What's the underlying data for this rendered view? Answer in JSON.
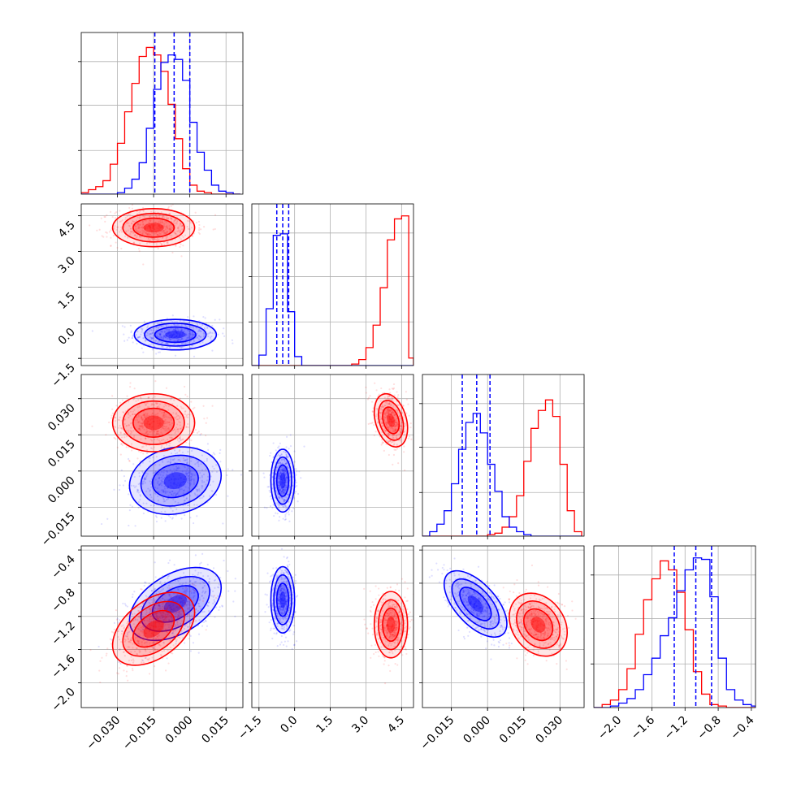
{
  "chart_data": {
    "type": "corner",
    "colors": {
      "red": "#ff0000",
      "blue": "#0000ff",
      "grid": "#b0b0b0"
    },
    "parameters": [
      {
        "range": [
          -0.045,
          0.022
        ],
        "ticks": [
          "−0.030",
          "−0.015",
          "0.000",
          "0.015"
        ],
        "tick_values": [
          -0.03,
          -0.015,
          0.0,
          0.015
        ]
      },
      {
        "range": [
          -1.8,
          5.0
        ],
        "ticks": [
          "−1.5",
          "0.0",
          "1.5",
          "3.0",
          "4.5"
        ],
        "tick_values": [
          -1.5,
          0.0,
          1.5,
          3.0,
          4.5
        ]
      },
      {
        "range": [
          -0.027,
          0.04
        ],
        "ticks": [
          "−0.015",
          "0.000",
          "0.015",
          "0.030"
        ],
        "tick_values": [
          -0.015,
          0.0,
          0.015,
          0.03
        ]
      },
      {
        "range": [
          -2.3,
          -0.35
        ],
        "ticks": [
          "−2.0",
          "−1.6",
          "−1.2",
          "−0.8",
          "−0.4"
        ],
        "tick_values": [
          -2.0,
          -1.6,
          -1.2,
          -0.8,
          -0.4
        ]
      }
    ],
    "marginals": [
      {
        "param": 0,
        "quantiles_blue": [
          -0.0145,
          -0.0065,
          0.0
        ],
        "red": {
          "edges": [
            -0.045,
            -0.042,
            -0.039,
            -0.036,
            -0.033,
            -0.03,
            -0.027,
            -0.024,
            -0.021,
            -0.018,
            -0.015,
            -0.012,
            -0.009,
            -0.006,
            -0.003,
            0.0,
            0.003,
            0.006,
            0.009,
            0.012,
            0.015,
            0.018,
            0.021
          ],
          "counts": [
            0.01,
            0.03,
            0.05,
            0.09,
            0.2,
            0.34,
            0.55,
            0.74,
            0.92,
            0.98,
            0.93,
            0.82,
            0.6,
            0.37,
            0.17,
            0.06,
            0.02,
            0.01,
            0,
            0,
            0,
            0
          ]
        },
        "blue": {
          "edges": [
            -0.045,
            -0.042,
            -0.039,
            -0.036,
            -0.033,
            -0.03,
            -0.027,
            -0.024,
            -0.021,
            -0.018,
            -0.015,
            -0.012,
            -0.009,
            -0.006,
            -0.003,
            0.0,
            0.003,
            0.006,
            0.009,
            0.012,
            0.015,
            0.018,
            0.021
          ],
          "counts": [
            0,
            0,
            0,
            0,
            0,
            0.01,
            0.04,
            0.1,
            0.21,
            0.44,
            0.7,
            0.88,
            0.93,
            0.9,
            0.76,
            0.48,
            0.28,
            0.16,
            0.06,
            0.02,
            0.01,
            0
          ]
        }
      },
      {
        "param": 1,
        "quantiles_blue": [
          -0.75,
          -0.5,
          -0.25
        ],
        "red": {
          "edges": [
            -1.8,
            -1.5,
            -1.2,
            -0.9,
            -0.6,
            -0.3,
            0.0,
            0.3,
            0.6,
            0.9,
            1.2,
            1.5,
            1.8,
            2.1,
            2.4,
            2.7,
            3.0,
            3.3,
            3.6,
            3.9,
            4.2,
            4.5,
            4.8,
            5.0
          ],
          "counts": [
            0,
            0,
            0,
            0,
            0,
            0,
            0,
            0,
            0,
            0,
            0,
            0,
            0,
            0,
            0.01,
            0.04,
            0.12,
            0.27,
            0.52,
            0.84,
            0.98,
            1.0,
            0.05
          ]
        },
        "blue": {
          "edges": [
            -1.8,
            -1.5,
            -1.2,
            -0.9,
            -0.6,
            -0.3,
            0.0,
            0.3,
            0.6,
            0.9,
            1.2,
            1.5,
            1.8,
            2.1,
            2.4,
            2.7,
            3.0,
            3.3,
            3.6,
            3.9,
            4.2,
            4.5,
            4.8,
            5.0
          ],
          "counts": [
            0,
            0.07,
            0.38,
            0.87,
            0.88,
            0.36,
            0.06,
            0,
            0,
            0,
            0,
            0,
            0,
            0,
            0,
            0,
            0,
            0,
            0,
            0,
            0,
            0,
            0
          ]
        }
      },
      {
        "param": 2,
        "quantiles_blue": [
          -0.0105,
          -0.0045,
          0.001
        ],
        "red": {
          "edges": [
            -0.027,
            -0.024,
            -0.021,
            -0.018,
            -0.015,
            -0.012,
            -0.009,
            -0.006,
            -0.003,
            0.0,
            0.003,
            0.006,
            0.009,
            0.012,
            0.015,
            0.018,
            0.021,
            0.024,
            0.027,
            0.03,
            0.033,
            0.036,
            0.039
          ],
          "counts": [
            0,
            0,
            0,
            0,
            0,
            0,
            0,
            0,
            0,
            0.01,
            0.02,
            0.06,
            0.13,
            0.27,
            0.5,
            0.72,
            0.84,
            0.91,
            0.8,
            0.48,
            0.17,
            0.03
          ]
        },
        "blue": {
          "edges": [
            -0.027,
            -0.024,
            -0.021,
            -0.018,
            -0.015,
            -0.012,
            -0.009,
            -0.006,
            -0.003,
            0.0,
            0.003,
            0.006,
            0.009,
            0.012,
            0.015,
            0.018,
            0.021,
            0.024,
            0.027,
            0.03,
            0.033,
            0.036,
            0.039
          ],
          "counts": [
            0,
            0.03,
            0.08,
            0.17,
            0.35,
            0.58,
            0.76,
            0.82,
            0.69,
            0.48,
            0.3,
            0.13,
            0.06,
            0.03,
            0.01,
            0,
            0,
            0,
            0,
            0,
            0,
            0
          ]
        }
      },
      {
        "param": 3,
        "quantiles_blue": [
          -1.33,
          -1.07,
          -0.88
        ],
        "red": {
          "edges": [
            -2.3,
            -2.2,
            -2.1,
            -2.0,
            -1.9,
            -1.8,
            -1.7,
            -1.6,
            -1.5,
            -1.4,
            -1.3,
            -1.2,
            -1.1,
            -1.0,
            -0.9,
            -0.8,
            -0.7,
            -0.6,
            -0.5,
            -0.4,
            -0.35
          ],
          "counts": [
            0,
            0.02,
            0.05,
            0.12,
            0.26,
            0.49,
            0.72,
            0.86,
            0.98,
            0.92,
            0.77,
            0.52,
            0.24,
            0.09,
            0.02,
            0.01,
            0,
            0,
            0,
            0
          ]
        },
        "blue": {
          "edges": [
            -2.3,
            -2.2,
            -2.1,
            -2.0,
            -1.9,
            -1.8,
            -1.7,
            -1.6,
            -1.5,
            -1.4,
            -1.3,
            -1.2,
            -1.1,
            -1.0,
            -0.9,
            -0.8,
            -0.7,
            -0.6,
            -0.5,
            -0.4,
            -0.35
          ],
          "counts": [
            0,
            0,
            0.01,
            0.03,
            0.06,
            0.12,
            0.22,
            0.33,
            0.48,
            0.6,
            0.78,
            0.92,
            1.0,
            0.99,
            0.74,
            0.33,
            0.12,
            0.05,
            0.02,
            0.01
          ]
        }
      }
    ],
    "joints": [
      {
        "x": 0,
        "y": 1,
        "red": {
          "mean": [
            -0.015,
            4.0
          ],
          "sd": [
            0.0085,
            0.4
          ],
          "rho": 0.0
        },
        "blue": {
          "mean": [
            -0.006,
            -0.5
          ],
          "sd": [
            0.0085,
            0.32
          ],
          "rho": 0.0
        }
      },
      {
        "x": 0,
        "y": 2,
        "red": {
          "mean": [
            -0.015,
            0.02
          ],
          "sd": [
            0.0085,
            0.006
          ],
          "rho": 0.0
        },
        "blue": {
          "mean": [
            -0.006,
            -0.004
          ],
          "sd": [
            0.0095,
            0.007
          ],
          "rho": 0.15
        }
      },
      {
        "x": 1,
        "y": 2,
        "red": {
          "mean": [
            4.05,
            0.021
          ],
          "sd": [
            0.35,
            0.0055
          ],
          "rho": -0.3
        },
        "blue": {
          "mean": [
            -0.5,
            -0.004
          ],
          "sd": [
            0.25,
            0.0065
          ],
          "rho": 0.0
        }
      },
      {
        "x": 0,
        "y": 3,
        "red": {
          "mean": [
            -0.015,
            -1.35
          ],
          "sd": [
            0.0085,
            0.22
          ],
          "rho": 0.45
        },
        "blue": {
          "mean": [
            -0.006,
            -1.05
          ],
          "sd": [
            0.0095,
            0.22
          ],
          "rho": 0.45
        }
      },
      {
        "x": 1,
        "y": 3,
        "red": {
          "mean": [
            4.05,
            -1.3
          ],
          "sd": [
            0.35,
            0.2
          ],
          "rho": 0.0
        },
        "blue": {
          "mean": [
            -0.5,
            -1.0
          ],
          "sd": [
            0.25,
            0.2
          ],
          "rho": 0.0
        }
      },
      {
        "x": 2,
        "y": 3,
        "red": {
          "mean": [
            0.021,
            -1.3
          ],
          "sd": [
            0.006,
            0.19
          ],
          "rho": -0.25
        },
        "blue": {
          "mean": [
            -0.005,
            -1.05
          ],
          "sd": [
            0.0065,
            0.2
          ],
          "rho": -0.6
        }
      }
    ],
    "grid": true
  }
}
